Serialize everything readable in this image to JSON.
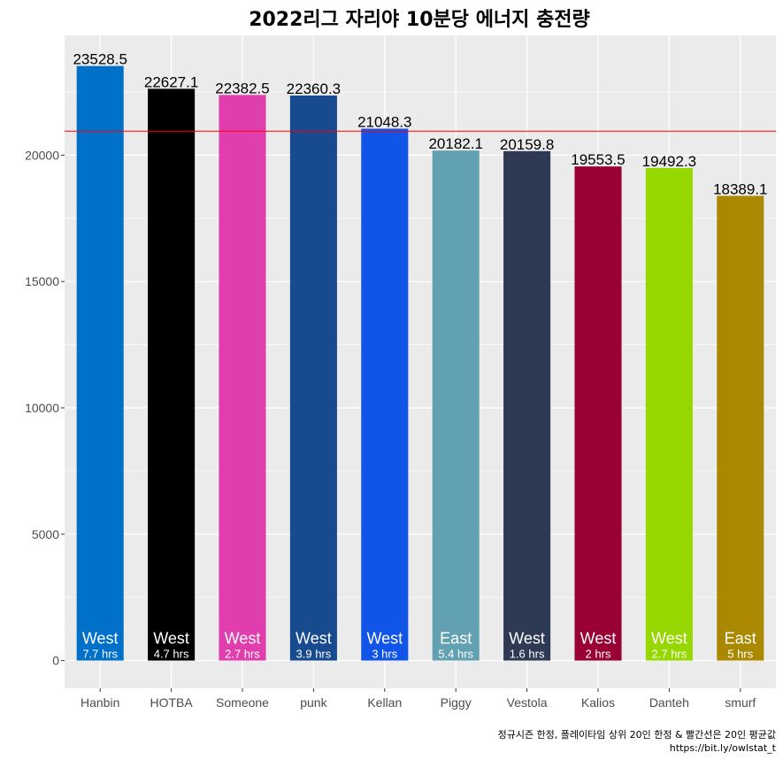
{
  "chart_data": {
    "type": "bar",
    "title": "2022리그 자리야 10분당 에너지 충전량",
    "xlabel": "",
    "ylabel": "",
    "categories": [
      "Hanbin",
      "HOTBA",
      "Someone",
      "punk",
      "Kellan",
      "Piggy",
      "Vestola",
      "Kalios",
      "Danteh",
      "smurf"
    ],
    "values": [
      23528.5,
      22627.1,
      22382.5,
      22360.3,
      21048.3,
      20182.1,
      20159.8,
      19553.5,
      19492.3,
      18389.1
    ],
    "value_labels": [
      "23528.5",
      "22627.1",
      "22382.5",
      "22360.3",
      "21048.3",
      "20182.1",
      "20159.8",
      "19553.5",
      "19492.3",
      "18389.1"
    ],
    "regions": [
      "West",
      "West",
      "West",
      "West",
      "West",
      "East",
      "West",
      "West",
      "West",
      "East"
    ],
    "hours": [
      "7.7 hrs",
      "4.7 hrs",
      "2.7 hrs",
      "3.9 hrs",
      "3 hrs",
      "5.4 hrs",
      "1.6 hrs",
      "2 hrs",
      "2.7 hrs",
      "5 hrs"
    ],
    "colors": [
      "#0070c9",
      "#000000",
      "#e03ead",
      "#174a8f",
      "#1155e8",
      "#62a1b2",
      "#2e3a54",
      "#990033",
      "#97d700",
      "#aa8800"
    ],
    "yticks": [
      0,
      5000,
      10000,
      15000,
      20000
    ],
    "ytick_labels": [
      "0",
      "5000",
      "10000",
      "15000",
      "20000"
    ],
    "ylim": [
      -1100,
      24740
    ],
    "reference_line": {
      "value": 20950,
      "color": "#ff0000"
    },
    "grid": true,
    "caption_line1": "정규시즌 한정, 플레이타임 상위 20인 한정 & 빨간선은 20인 평균값",
    "caption_line2": "https://bit.ly/owlstat_t"
  }
}
